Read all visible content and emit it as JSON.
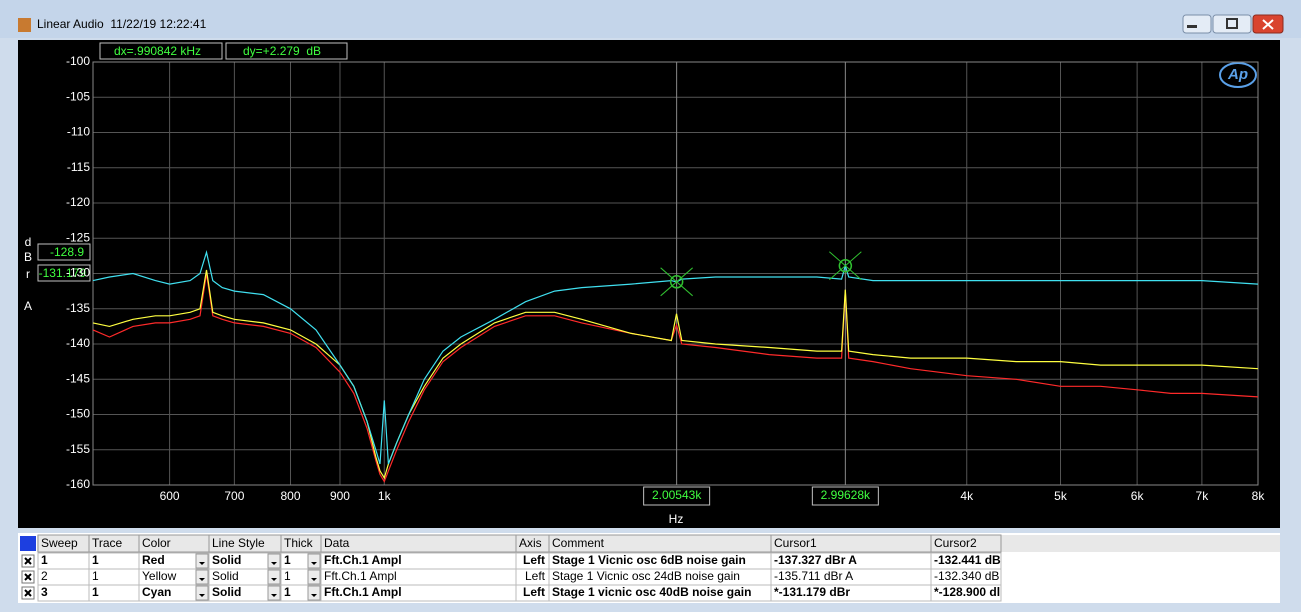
{
  "window": {
    "title": "Linear Audio  11/22/19 12:22:41"
  },
  "cursor_readout": {
    "dx": "dx=.990842 kHz",
    "dy": "dy=+2.279  dB"
  },
  "logo": "Ap",
  "chart_data": {
    "type": "line",
    "x_label": "Hz",
    "y_label_letters": [
      "d",
      "B",
      "r",
      "A"
    ],
    "log_x": true,
    "grid": true,
    "xlim": [
      500,
      8000
    ],
    "ylim": [
      -160,
      -100
    ],
    "xticks": [
      600,
      700,
      800,
      900,
      {
        "value": 1000,
        "label": "1k"
      },
      {
        "value": 4000,
        "label": "4k"
      },
      {
        "value": 5000,
        "label": "5k"
      },
      {
        "value": 6000,
        "label": "6k"
      },
      {
        "value": 7000,
        "label": "7k"
      },
      {
        "value": 8000,
        "label": "8k"
      }
    ],
    "yticks": [
      -160,
      -155,
      -150,
      -145,
      -140,
      -135,
      -130,
      -125,
      -120,
      -115,
      -110,
      -105,
      -100
    ],
    "x": [
      500,
      520,
      550,
      580,
      600,
      630,
      645,
      655,
      665,
      680,
      700,
      750,
      800,
      850,
      900,
      930,
      960,
      980,
      990,
      1000,
      1010,
      1030,
      1060,
      1100,
      1150,
      1200,
      1300,
      1400,
      1500,
      1600,
      1800,
      1980,
      2005,
      2030,
      2200,
      2500,
      2800,
      2970,
      2996,
      3020,
      3200,
      3500,
      4000,
      4500,
      5000,
      5500,
      6000,
      6500,
      7000,
      8000
    ],
    "series": [
      {
        "color": "#ff2a2a",
        "values": [
          -138,
          -139,
          -137.5,
          -137,
          -137,
          -136.5,
          -136,
          -130,
          -136,
          -136.5,
          -137,
          -137.5,
          -138.5,
          -140.5,
          -144,
          -147,
          -152,
          -156.5,
          -158.5,
          -159.5,
          -158,
          -155,
          -151,
          -146.5,
          -142.5,
          -140.5,
          -137.5,
          -136,
          -136,
          -137,
          -138.5,
          -139.5,
          -137.3,
          -140,
          -140.5,
          -141.5,
          -142,
          -142,
          -132.4,
          -142,
          -142.5,
          -143.5,
          -144.5,
          -145,
          -146,
          -146,
          -146.5,
          -147,
          -147,
          -147.5
        ]
      },
      {
        "color": "#ffff40",
        "values": [
          -137,
          -137.5,
          -136.5,
          -136,
          -136,
          -135.5,
          -135,
          -129.5,
          -135.5,
          -136,
          -136.5,
          -137,
          -138,
          -140,
          -143,
          -146,
          -151,
          -156,
          -158,
          -159,
          -157,
          -154,
          -150,
          -146,
          -142,
          -140,
          -137,
          -135.5,
          -135.5,
          -136.5,
          -138.5,
          -139.5,
          -135.7,
          -139.5,
          -140,
          -140.5,
          -141,
          -141,
          -132.3,
          -141,
          -141.5,
          -142,
          -142,
          -142.5,
          -142.5,
          -143,
          -143,
          -143,
          -143,
          -143.5
        ]
      },
      {
        "color": "#40e0f0",
        "values": [
          -131,
          -130.5,
          -130,
          -131,
          -131.5,
          -131,
          -130,
          -127,
          -131,
          -132,
          -132.5,
          -133,
          -135,
          -138,
          -143,
          -146,
          -151,
          -155,
          -157,
          -148,
          -157,
          -154,
          -150,
          -145,
          -141,
          -139,
          -136.5,
          -134,
          -132.5,
          -132,
          -131.5,
          -131,
          -131.2,
          -130.8,
          -130.5,
          -130.5,
          -130.5,
          -130.8,
          -128.9,
          -130.5,
          -131,
          -131,
          -131,
          -131,
          -131,
          -131,
          -131,
          -131,
          -131,
          -131.5
        ]
      }
    ],
    "cursors": [
      {
        "x": {
          "value": 2005.43,
          "label": "2.00543k"
        },
        "y": -131.179
      },
      {
        "x": {
          "value": 2996.28,
          "label": "2.99628k"
        },
        "y": -128.9
      }
    ]
  },
  "table": {
    "header": [
      "Sweep",
      "Trace",
      "Color",
      "Line Style",
      "Thick",
      "Data",
      "Axis",
      "Comment",
      "Cursor1",
      "Cursor2"
    ],
    "rows": [
      [
        "1",
        "1",
        "Red",
        "Solid",
        "1",
        "Fft.Ch.1 Ampl",
        "Left",
        "Stage 1 Vicnic osc 6dB noise gain",
        "-137.327 dBr A",
        "-132.441 dB"
      ],
      [
        "2",
        "1",
        "Yellow",
        "Solid",
        "1",
        "Fft.Ch.1 Ampl",
        "Left",
        "Stage 1 Vicnic osc 24dB noise gain",
        "-135.711 dBr A",
        "-132.340 dB"
      ],
      [
        "3",
        "1",
        "Cyan",
        "Solid",
        "1",
        "Fft.Ch.1 Ampl",
        "Left",
        "Stage 1 vicnic osc 40dB noise gain",
        "*-131.179 dBr",
        "*-128.900 dl"
      ]
    ]
  }
}
